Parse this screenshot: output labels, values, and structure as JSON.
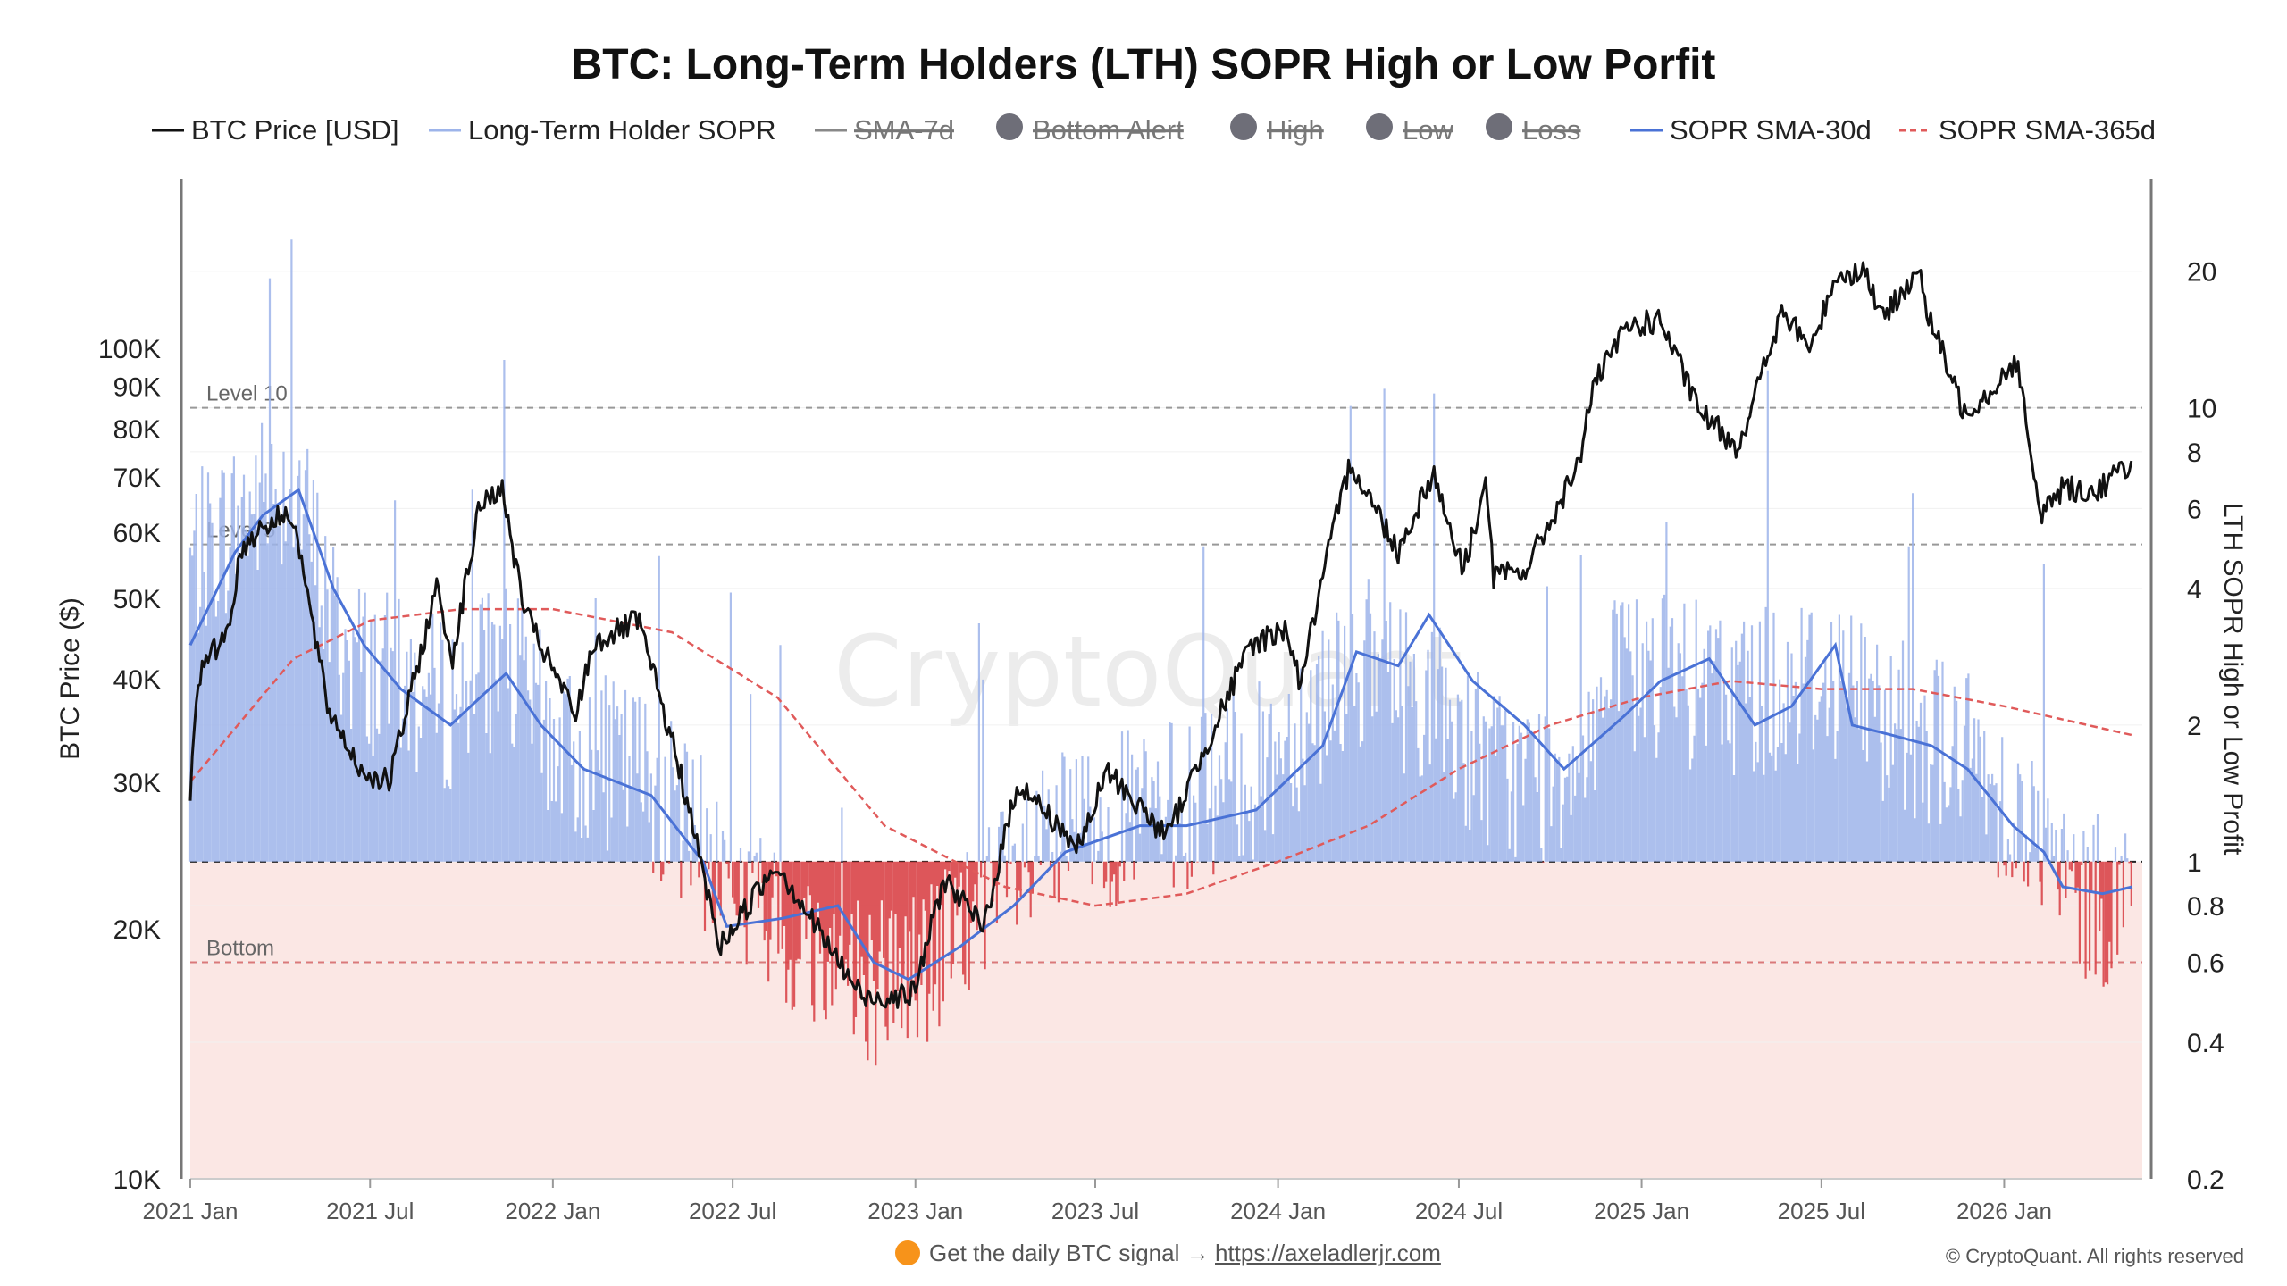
{
  "chart_data": {
    "type": "line",
    "title": "BTC: Long-Term Holders (LTH) SOPR High or Low Porfit",
    "ylabel_left": "BTC Price ($)",
    "ylabel_right": "LTH SOPR High or Low Profit",
    "yscale": "log",
    "ylim_left": [
      10000,
      160000
    ],
    "ylim_right": [
      0.2,
      32
    ],
    "xlim": [
      "2021-01-01",
      "2026-05-20"
    ],
    "x_ticks": [
      "2021 Jan",
      "2021 Jul",
      "2022 Jan",
      "2022 Jul",
      "2023 Jan",
      "2023 Jul",
      "2024 Jan",
      "2024 Jul",
      "2025 Jan",
      "2025 Jul",
      "2026 Jan"
    ],
    "y_ticks_left": [
      "10K",
      "20K",
      "30K",
      "40K",
      "50K",
      "60K",
      "70K",
      "80K",
      "90K",
      "100K"
    ],
    "y_ticks_right": [
      "0.2",
      "0.4",
      "0.6",
      "0.8",
      "1",
      "2",
      "4",
      "6",
      "8",
      "10",
      "20"
    ],
    "grid": false,
    "legend": [
      {
        "label": "BTC Price [USD]",
        "color": "#111111",
        "style": "line",
        "hidden": false
      },
      {
        "label": "Long-Term Holder SOPR",
        "color": "#9db4ea",
        "style": "line",
        "hidden": false
      },
      {
        "label": "SMA-7d",
        "color": "#888888",
        "style": "line",
        "hidden": true
      },
      {
        "label": "Bottom Alert",
        "color": "#6e6e78",
        "style": "dot",
        "hidden": true
      },
      {
        "label": "High",
        "color": "#6e6e78",
        "style": "dot",
        "hidden": true
      },
      {
        "label": "Low",
        "color": "#6e6e78",
        "style": "dot",
        "hidden": true
      },
      {
        "label": "Loss",
        "color": "#6e6e78",
        "style": "dot",
        "hidden": true
      },
      {
        "label": "SOPR SMA-30d",
        "color": "#4a72d6",
        "style": "line",
        "hidden": false
      },
      {
        "label": "SOPR SMA-365d",
        "color": "#e05a5a",
        "style": "dash",
        "hidden": false
      }
    ],
    "reference_lines": [
      {
        "label": "Level 10",
        "value": 10
      },
      {
        "label": "Level 5",
        "value": 5
      },
      {
        "label": "",
        "value": 1
      },
      {
        "label": "Bottom",
        "value": 0.6
      }
    ],
    "loss_zone": {
      "from": 0.2,
      "to": 1,
      "color": "#fbe7e4"
    },
    "series": [
      {
        "name": "BTC Price [USD]",
        "axis": "left",
        "color": "#111111",
        "x": [
          "2021-01-01",
          "2021-01-08",
          "2021-02-08",
          "2021-02-21",
          "2021-03-13",
          "2021-04-14",
          "2021-05-19",
          "2021-06-22",
          "2021-07-20",
          "2021-09-07",
          "2021-09-21",
          "2021-10-20",
          "2021-11-10",
          "2021-12-04",
          "2022-01-24",
          "2022-02-10",
          "2022-03-28",
          "2022-05-09",
          "2022-06-18",
          "2022-08-14",
          "2022-09-30",
          "2022-11-09",
          "2022-12-30",
          "2023-01-30",
          "2023-03-10",
          "2023-04-14",
          "2023-06-15",
          "2023-07-13",
          "2023-09-11",
          "2023-10-24",
          "2023-12-05",
          "2024-01-10",
          "2024-01-23",
          "2024-02-28",
          "2024-03-14",
          "2024-05-01",
          "2024-06-05",
          "2024-07-05",
          "2024-07-29",
          "2024-08-05",
          "2024-09-06",
          "2024-10-29",
          "2024-11-12",
          "2024-12-17",
          "2025-01-20",
          "2025-02-28",
          "2025-04-08",
          "2025-05-22",
          "2025-06-22",
          "2025-07-14",
          "2025-08-14",
          "2025-09-01",
          "2025-10-06",
          "2025-10-15",
          "2025-11-21",
          "2025-12-15",
          "2026-01-14",
          "2026-02-05",
          "2026-03-01",
          "2026-04-01",
          "2026-05-10"
        ],
        "values": [
          29000,
          40000,
          46000,
          57000,
          61000,
          63500,
          37000,
          31000,
          30000,
          52000,
          42000,
          65000,
          68000,
          48000,
          36000,
          44000,
          47000,
          31000,
          19000,
          24000,
          19500,
          16500,
          16700,
          23000,
          20000,
          30000,
          25000,
          31000,
          25800,
          34000,
          44000,
          46000,
          39500,
          62000,
          73000,
          57000,
          71000,
          54000,
          69000,
          53000,
          54000,
          72000,
          89000,
          106000,
          108000,
          84000,
          76000,
          110000,
          100000,
          122000,
          124000,
          108000,
          125000,
          111000,
          84000,
          88000,
          97000,
          63000,
          68000,
          67000,
          73000
        ]
      },
      {
        "name": "Long-Term Holder SOPR",
        "axis": "right",
        "color": "#9db4ea",
        "x": [
          "2021-01-01",
          "2021-03-01",
          "2021-04-15",
          "2021-06-01",
          "2021-07-20",
          "2021-09-15",
          "2021-11-10",
          "2022-01-15",
          "2022-03-30",
          "2022-06-15",
          "2022-08-15",
          "2022-11-15",
          "2023-01-15",
          "2023-03-15",
          "2023-06-15",
          "2023-09-15",
          "2023-12-15",
          "2024-03-14",
          "2024-06-01",
          "2024-08-05",
          "2024-10-01",
          "2024-12-15",
          "2025-03-01",
          "2025-05-01",
          "2025-07-15",
          "2025-09-15",
          "2025-11-15",
          "2026-01-15",
          "2026-03-15",
          "2026-05-10"
        ],
        "values": [
          4.5,
          6,
          7,
          3,
          2.5,
          2.2,
          2.8,
          1.7,
          1.6,
          1.0,
          0.7,
          0.55,
          0.6,
          0.8,
          1.2,
          1.3,
          1.6,
          2.8,
          2.3,
          1.6,
          1.5,
          2.6,
          2.4,
          2.4,
          2.6,
          2.0,
          1.8,
          1.3,
          0.8,
          0.85
        ]
      },
      {
        "name": "SOPR SMA-30d",
        "axis": "right",
        "color": "#4a72d6",
        "x": [
          "2021-01-01",
          "2021-02-15",
          "2021-03-15",
          "2021-04-20",
          "2021-05-25",
          "2021-06-25",
          "2021-08-01",
          "2021-09-20",
          "2021-11-15",
          "2021-12-20",
          "2022-02-01",
          "2022-04-10",
          "2022-06-01",
          "2022-06-25",
          "2022-08-20",
          "2022-10-15",
          "2022-11-20",
          "2022-12-25",
          "2023-02-15",
          "2023-04-10",
          "2023-06-01",
          "2023-08-15",
          "2023-10-01",
          "2023-12-10",
          "2024-02-15",
          "2024-03-20",
          "2024-05-01",
          "2024-06-01",
          "2024-07-15",
          "2024-09-05",
          "2024-10-15",
          "2024-12-15",
          "2025-01-20",
          "2025-03-10",
          "2025-04-25",
          "2025-06-01",
          "2025-07-15",
          "2025-08-01",
          "2025-09-10",
          "2025-10-20",
          "2025-11-25",
          "2026-01-10",
          "2026-02-10",
          "2026-03-01",
          "2026-04-10",
          "2026-05-10"
        ],
        "values": [
          3.0,
          4.8,
          5.8,
          6.6,
          4.0,
          3.0,
          2.4,
          2.0,
          2.6,
          2.0,
          1.6,
          1.4,
          1.0,
          0.72,
          0.75,
          0.8,
          0.6,
          0.55,
          0.65,
          0.8,
          1.05,
          1.2,
          1.2,
          1.3,
          1.8,
          2.9,
          2.7,
          3.5,
          2.5,
          2.0,
          1.6,
          2.1,
          2.5,
          2.8,
          2.0,
          2.2,
          3.0,
          2.0,
          1.9,
          1.8,
          1.6,
          1.2,
          1.05,
          0.88,
          0.85,
          0.88
        ]
      },
      {
        "name": "SOPR SMA-365d",
        "axis": "right",
        "color": "#e05a5a",
        "x": [
          "2021-01-01",
          "2021-04-15",
          "2021-07-01",
          "2021-10-01",
          "2022-01-01",
          "2022-05-01",
          "2022-08-15",
          "2022-12-01",
          "2023-04-01",
          "2023-07-01",
          "2023-10-01",
          "2024-01-01",
          "2024-04-01",
          "2024-07-01",
          "2024-10-01",
          "2025-01-01",
          "2025-04-01",
          "2025-07-01",
          "2025-10-01",
          "2026-01-01",
          "2026-05-10"
        ],
        "values": [
          1.5,
          2.8,
          3.4,
          3.6,
          3.6,
          3.2,
          2.3,
          1.2,
          0.88,
          0.8,
          0.85,
          1.0,
          1.2,
          1.6,
          2.0,
          2.3,
          2.5,
          2.4,
          2.4,
          2.2,
          1.9
        ]
      }
    ]
  },
  "footer": {
    "signal_text": "Get the daily BTC signal →",
    "signal_link": "https://axeladlerjr.com",
    "copyright": "© CryptoQuant. All rights reserved"
  },
  "watermark": "CryptoQuant",
  "colors": {
    "signal_dot": "#f7931a",
    "loss_bar": "#d9464a"
  }
}
